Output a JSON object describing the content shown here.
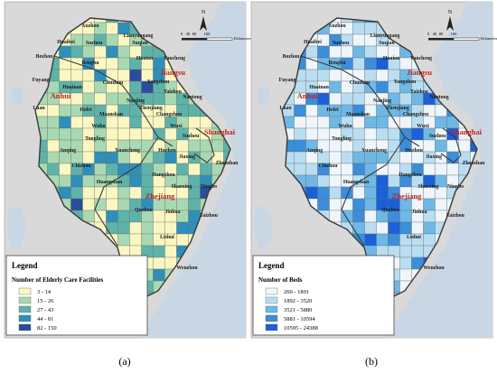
{
  "panels": [
    {
      "caption": "(a)",
      "legend": {
        "title": "Legend",
        "subtitle": "Number of Elderly Care Facilities",
        "classes": [
          {
            "label": "3 - 14",
            "color": "#fbf7c2"
          },
          {
            "label": "15 - 26",
            "color": "#a9d9b2"
          },
          {
            "label": "27 - 43",
            "color": "#5db3a9"
          },
          {
            "label": "44 - 81",
            "color": "#2e8fb9"
          },
          {
            "label": "82 - 150",
            "color": "#2a4c9b"
          }
        ]
      }
    },
    {
      "caption": "(b)",
      "legend": {
        "title": "Legend",
        "subtitle": "Number of Beds",
        "classes": [
          {
            "label": "260 - 1891",
            "color": "#eef6fb"
          },
          {
            "label": "1892 - 3520",
            "color": "#b9def2"
          },
          {
            "label": "3521 - 5880",
            "color": "#6eb8e6"
          },
          {
            "label": "5881 - 10594",
            "color": "#3b8ed9"
          },
          {
            "label": "10595 - 24388",
            "color": "#1b5fd9"
          }
        ]
      }
    }
  ],
  "cities": [
    "Xuzhou",
    "Lianyungang",
    "Huaibei",
    "Suzhou",
    "Suqian",
    "Bozhou",
    "Bengbu",
    "Huaian",
    "Yancheng",
    "Fuyang",
    "Huainan",
    "Chuzhou",
    "Yangzhou",
    "Taizhou",
    "Luan",
    "Hefei",
    "Nanjing",
    "Zhenjiang",
    "Nantong",
    "Maanshan",
    "Changzhou",
    "Wuhu",
    "Wuxi",
    "Suzhou",
    "Tongling",
    "Xuancheng",
    "Huzhou",
    "Jiaxing",
    "Anqing",
    "Chizhou",
    "Huangshan",
    "Hangzhou",
    "Shaoxing",
    "Ningbo",
    "Zhoushan",
    "Quzhou",
    "Jinhua",
    "Taizhou",
    "Lishui",
    "Wenzhou"
  ],
  "provinces": [
    "Jiangsu",
    "Anhui",
    "Shanghai",
    "Zhejiang"
  ],
  "scale": {
    "north": "N",
    "ticks": [
      "0",
      "40",
      "80",
      "160"
    ],
    "unit": "Kilometers"
  }
}
